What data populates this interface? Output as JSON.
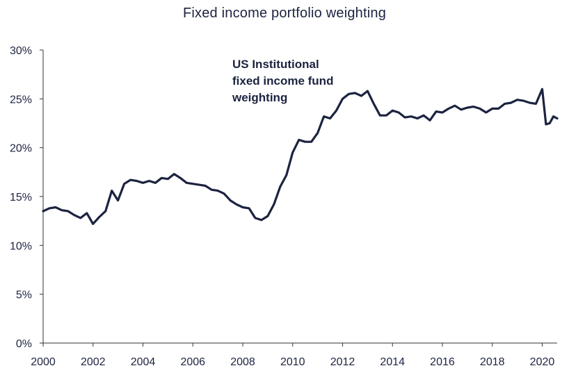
{
  "chart_data": {
    "type": "line",
    "title": "Fixed income portfolio weighting",
    "xlabel": "",
    "ylabel": "",
    "xlim": [
      2000,
      2020.6
    ],
    "ylim": [
      0,
      30
    ],
    "x_ticks": [
      2000,
      2002,
      2004,
      2006,
      2008,
      2010,
      2012,
      2014,
      2016,
      2018,
      2020
    ],
    "x_tick_labels": [
      "2000",
      "2002",
      "2004",
      "2006",
      "2008",
      "2010",
      "2012",
      "2014",
      "2016",
      "2018",
      "2020"
    ],
    "y_ticks": [
      0,
      5,
      10,
      15,
      20,
      25,
      30
    ],
    "y_tick_labels": [
      "0%",
      "5%",
      "10%",
      "15%",
      "20%",
      "25%",
      "30%"
    ],
    "grid": false,
    "line_color": "#1c2340",
    "annotation": [
      "US Institutional",
      "fixed income fund",
      "weighting"
    ],
    "series": [
      {
        "name": "",
        "x": [
          2000.0,
          2000.25,
          2000.5,
          2000.75,
          2001.0,
          2001.25,
          2001.5,
          2001.75,
          2002.0,
          2002.25,
          2002.5,
          2002.75,
          2003.0,
          2003.25,
          2003.5,
          2003.75,
          2004.0,
          2004.25,
          2004.5,
          2004.75,
          2005.0,
          2005.25,
          2005.5,
          2005.75,
          2006.0,
          2006.25,
          2006.5,
          2006.75,
          2007.0,
          2007.25,
          2007.5,
          2007.75,
          2008.0,
          2008.25,
          2008.5,
          2008.75,
          2009.0,
          2009.25,
          2009.5,
          2009.75,
          2010.0,
          2010.25,
          2010.5,
          2010.75,
          2011.0,
          2011.25,
          2011.5,
          2011.75,
          2012.0,
          2012.25,
          2012.5,
          2012.75,
          2013.0,
          2013.25,
          2013.5,
          2013.75,
          2014.0,
          2014.25,
          2014.5,
          2014.75,
          2015.0,
          2015.25,
          2015.5,
          2015.75,
          2016.0,
          2016.25,
          2016.5,
          2016.75,
          2017.0,
          2017.25,
          2017.5,
          2017.75,
          2018.0,
          2018.25,
          2018.5,
          2018.75,
          2019.0,
          2019.25,
          2019.5,
          2019.75,
          2020.0,
          2020.15,
          2020.3,
          2020.45,
          2020.6
        ],
        "values": [
          13.5,
          13.8,
          13.9,
          13.6,
          13.5,
          13.1,
          12.8,
          13.3,
          12.2,
          12.9,
          13.5,
          15.6,
          14.6,
          16.3,
          16.7,
          16.6,
          16.4,
          16.6,
          16.4,
          16.9,
          16.8,
          17.3,
          16.9,
          16.4,
          16.3,
          16.2,
          16.1,
          15.7,
          15.6,
          15.3,
          14.6,
          14.2,
          13.9,
          13.8,
          12.8,
          12.6,
          13.0,
          14.2,
          16.0,
          17.2,
          19.5,
          20.8,
          20.6,
          20.6,
          21.5,
          23.2,
          23.0,
          23.8,
          25.0,
          25.5,
          25.6,
          25.3,
          25.8,
          24.5,
          23.3,
          23.3,
          23.8,
          23.6,
          23.1,
          23.2,
          23.0,
          23.3,
          22.8,
          23.7,
          23.6,
          24.0,
          24.3,
          23.9,
          24.1,
          24.2,
          24.0,
          23.6,
          24.0,
          24.0,
          24.5,
          24.6,
          24.9,
          24.8,
          24.6,
          24.5,
          26.0,
          22.4,
          22.5,
          23.2,
          23.0
        ]
      }
    ]
  }
}
